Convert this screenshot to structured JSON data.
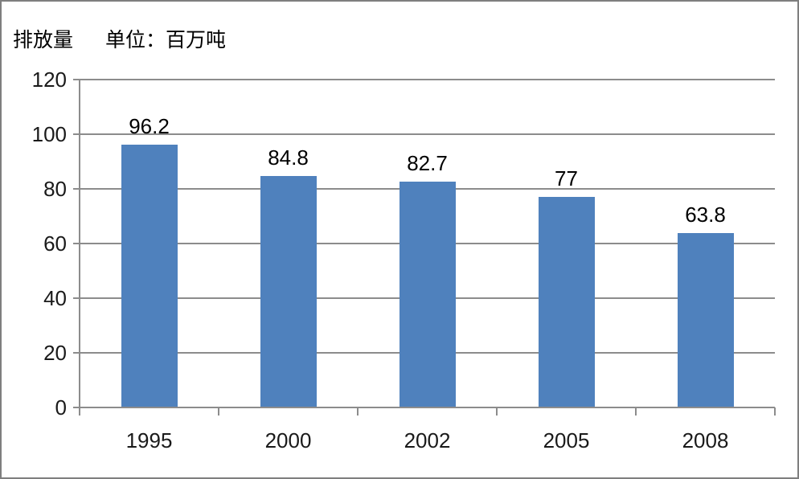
{
  "header": {
    "title": "排放量",
    "unit_label": "单位：百万吨"
  },
  "chart_data": {
    "type": "bar",
    "title": "排放量",
    "subtitle_unit": "单位：百万吨",
    "categories": [
      "1995",
      "2000",
      "2002",
      "2005",
      "2008"
    ],
    "values": [
      96.2,
      84.8,
      82.7,
      77,
      63.8
    ],
    "data_labels": [
      "96.2",
      "84.8",
      "82.7",
      "77",
      "63.8"
    ],
    "xlabel": "",
    "ylabel": "排放量",
    "ylim": [
      0,
      120
    ],
    "yticks": [
      0,
      20,
      40,
      60,
      80,
      100,
      120
    ],
    "grid": true,
    "legend": "none",
    "colors": {
      "bar": "#4f81bd",
      "gridline": "#8c8c8c",
      "axis": "#8c8c8c",
      "text": "#1a1a1a",
      "frame_border": "#7f7f7f",
      "background": "#ffffff"
    }
  }
}
